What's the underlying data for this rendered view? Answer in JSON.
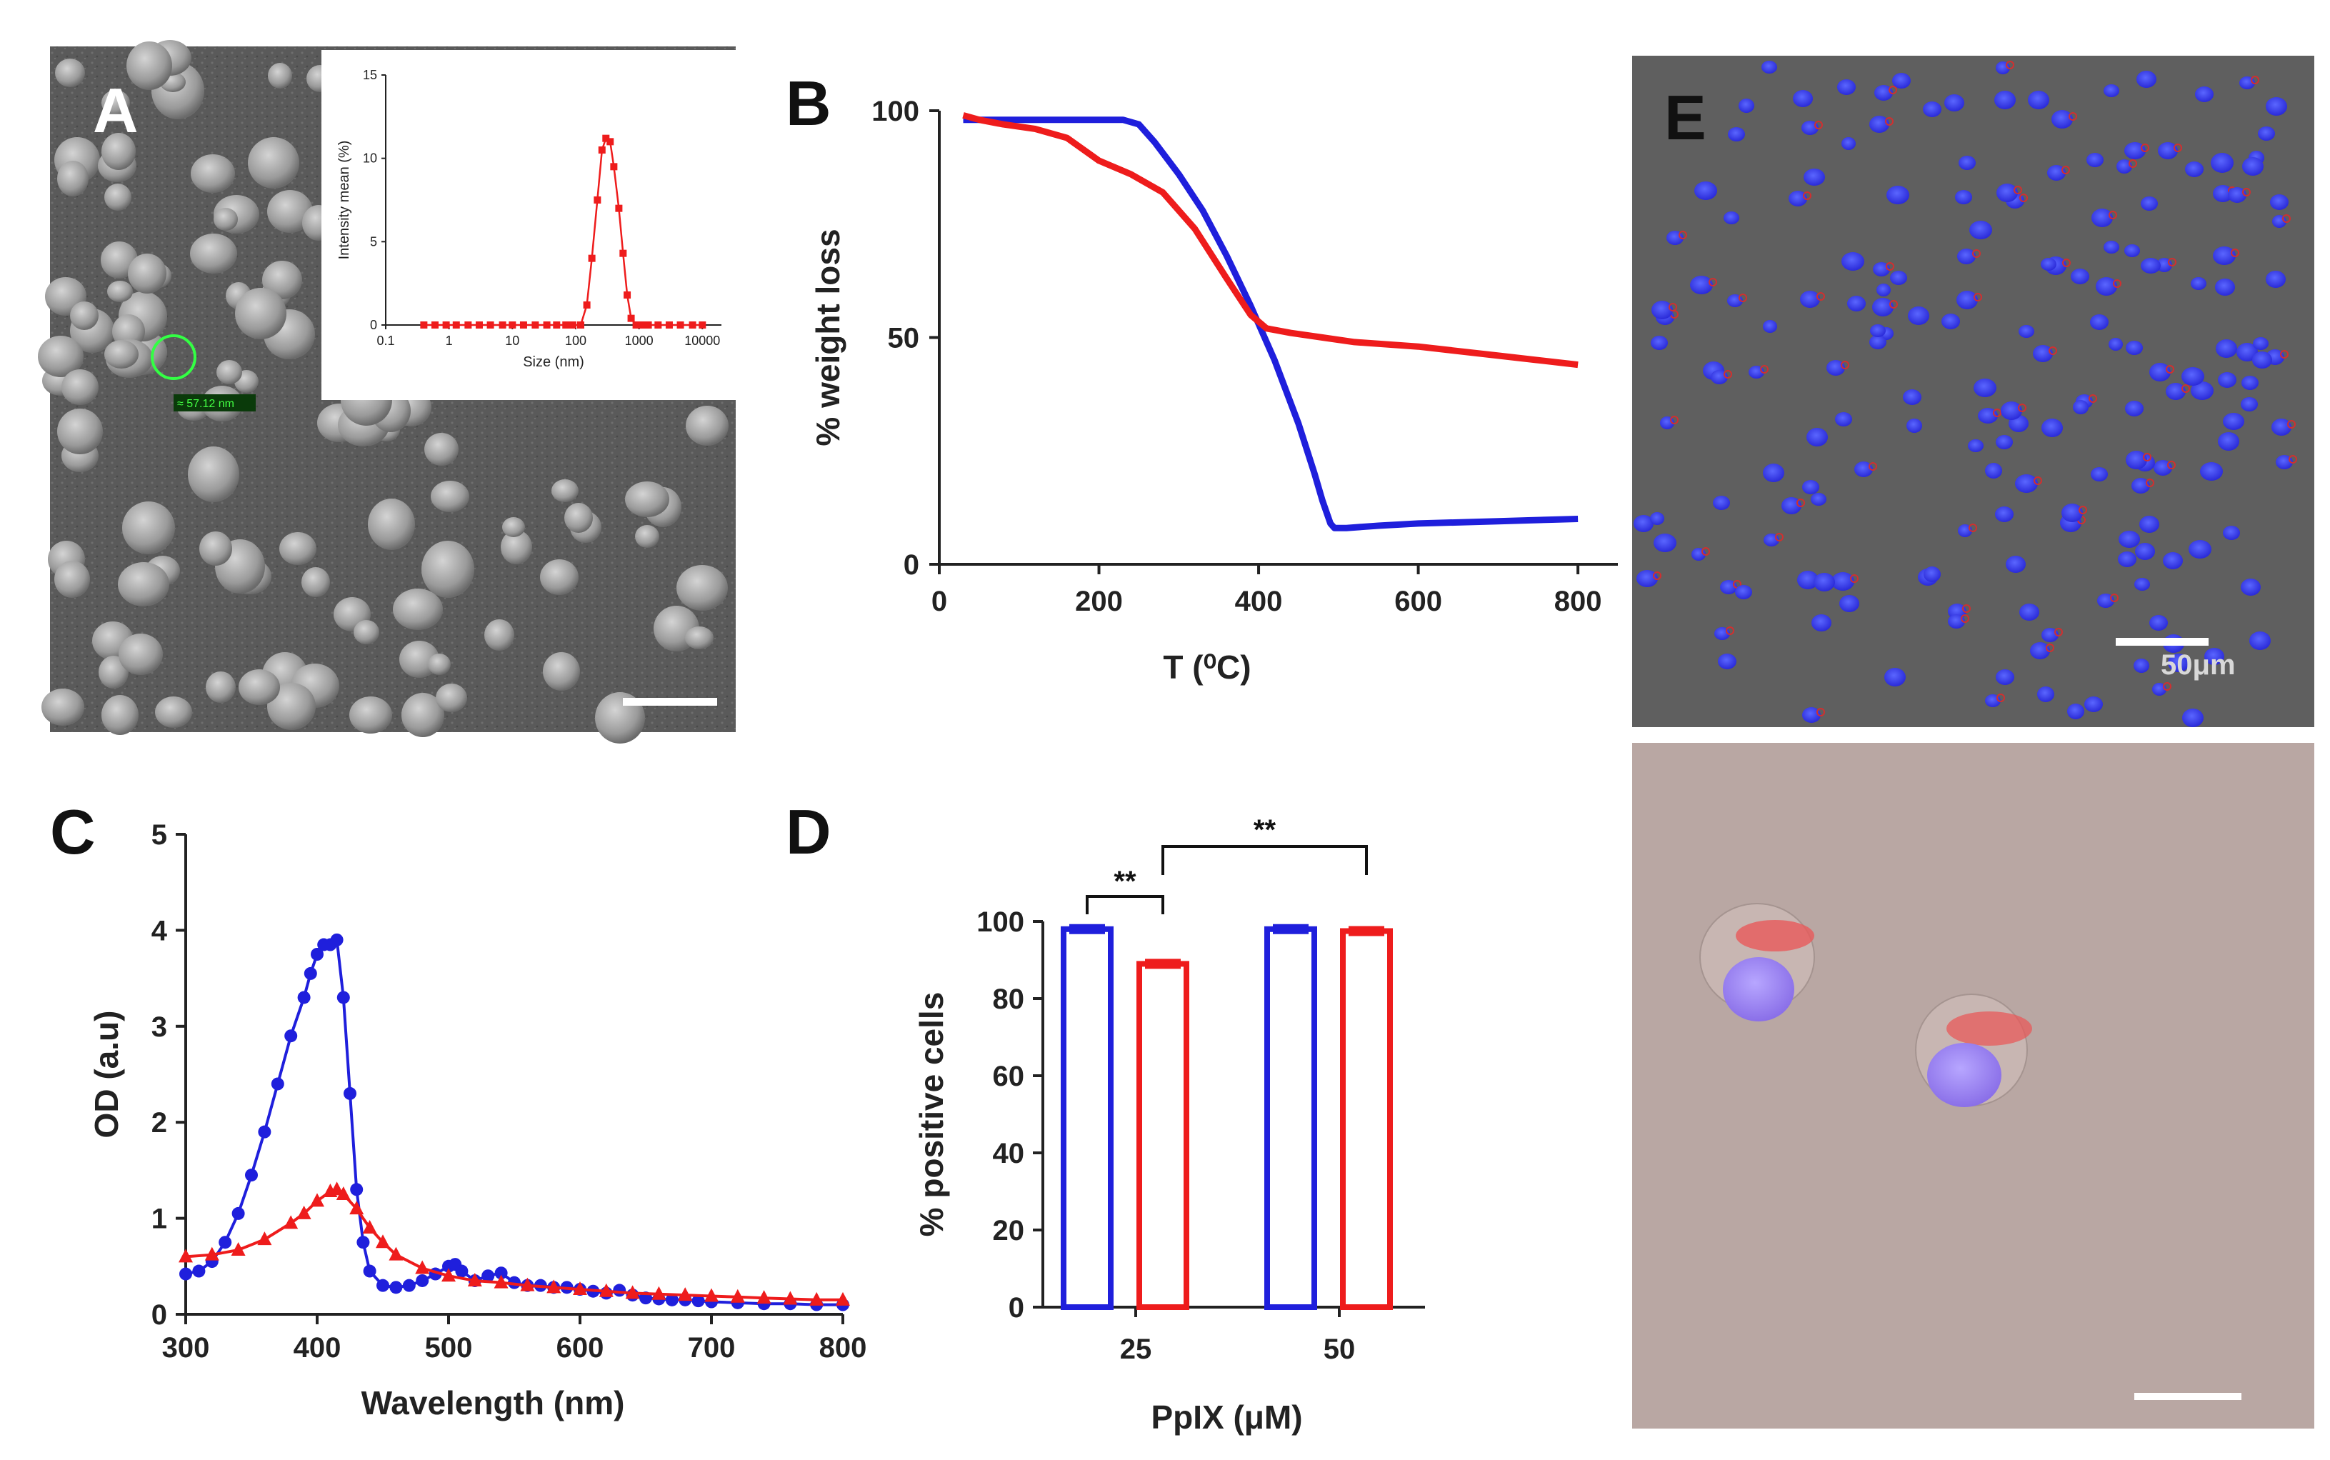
{
  "colors": {
    "blue": "#1f1fdc",
    "red": "#ee1c1c"
  },
  "panels": {
    "A": {
      "letter": "A",
      "measure_label": "≈ 57.12 nm"
    },
    "B": {
      "letter": "B"
    },
    "C": {
      "letter": "C"
    },
    "D": {
      "letter": "D"
    },
    "E": {
      "letter": "E",
      "scale_label": "50μm"
    }
  },
  "chart_data": [
    {
      "id": "A-inset",
      "type": "line",
      "xscale": "log",
      "xlabel": "Size (nm)",
      "ylabel": "Intensity mean (%)",
      "xlim": [
        0.1,
        20000
      ],
      "ylim": [
        0,
        15
      ],
      "xticks": [
        "0.1",
        "1",
        "10",
        "100",
        "1000",
        "10000"
      ],
      "yticks": [
        "0",
        "5",
        "10",
        "15"
      ],
      "series": [
        {
          "color": "#ee1c1c",
          "x": [
            0.4,
            0.6,
            0.9,
            1.3,
            2,
            3,
            4.5,
            7,
            10,
            15,
            23,
            35,
            50,
            70,
            90,
            120,
            150,
            180,
            220,
            260,
            300,
            350,
            400,
            480,
            560,
            650,
            750,
            900,
            1100,
            1400,
            2000,
            3000,
            4500,
            7000,
            10000
          ],
          "y": [
            0,
            0,
            0,
            0,
            0,
            0,
            0,
            0,
            0,
            0,
            0,
            0,
            0,
            0,
            0,
            0,
            1.2,
            4,
            7.5,
            10.5,
            11.2,
            11,
            9.5,
            7,
            4.3,
            1.8,
            0.4,
            0,
            0,
            0,
            0,
            0,
            0,
            0,
            0
          ]
        }
      ]
    },
    {
      "id": "B",
      "type": "line",
      "xlabel": "T (⁰C)",
      "ylabel": "% weight loss",
      "xlim": [
        0,
        850
      ],
      "ylim": [
        0,
        100
      ],
      "xticks": [
        "0",
        "200",
        "400",
        "600",
        "800"
      ],
      "yticks": [
        "0",
        "50",
        "100"
      ],
      "series": [
        {
          "color": "#1f1fdc",
          "x": [
            30,
            60,
            100,
            150,
            200,
            230,
            250,
            270,
            300,
            330,
            360,
            390,
            420,
            450,
            470,
            480,
            490,
            495,
            500,
            510,
            550,
            600,
            700,
            800
          ],
          "y": [
            98,
            98,
            98,
            98,
            98,
            98,
            97,
            93,
            86,
            78,
            68,
            57,
            45,
            31,
            20,
            14,
            9,
            8,
            8,
            8,
            8.5,
            9,
            9.5,
            10
          ]
        },
        {
          "color": "#ee1c1c",
          "x": [
            30,
            50,
            80,
            120,
            160,
            200,
            240,
            280,
            320,
            360,
            390,
            410,
            440,
            480,
            520,
            600,
            700,
            800
          ],
          "y": [
            99,
            98,
            97,
            96,
            94,
            89,
            86,
            82,
            74,
            63,
            55,
            52,
            51,
            50,
            49,
            48,
            46,
            44
          ]
        }
      ]
    },
    {
      "id": "C",
      "type": "line",
      "xlabel": "Wavelength (nm)",
      "ylabel": "OD (a.u)",
      "xlim": [
        300,
        800
      ],
      "ylim": [
        0,
        5
      ],
      "xticks": [
        "300",
        "400",
        "500",
        "600",
        "700",
        "800"
      ],
      "yticks": [
        "0",
        "1",
        "2",
        "3",
        "4",
        "5"
      ],
      "series": [
        {
          "color": "#1f1fdc",
          "marker": "circle",
          "x": [
            300,
            310,
            320,
            330,
            340,
            350,
            360,
            370,
            380,
            390,
            395,
            400,
            405,
            410,
            415,
            420,
            425,
            430,
            435,
            440,
            450,
            460,
            470,
            480,
            490,
            500,
            505,
            510,
            520,
            530,
            540,
            550,
            560,
            570,
            580,
            590,
            600,
            610,
            620,
            630,
            640,
            650,
            660,
            670,
            680,
            690,
            700,
            720,
            740,
            760,
            780,
            800
          ],
          "y": [
            0.42,
            0.45,
            0.55,
            0.75,
            1.05,
            1.45,
            1.9,
            2.4,
            2.9,
            3.3,
            3.55,
            3.75,
            3.85,
            3.85,
            3.9,
            3.3,
            2.3,
            1.3,
            0.75,
            0.45,
            0.3,
            0.28,
            0.3,
            0.35,
            0.42,
            0.5,
            0.52,
            0.45,
            0.35,
            0.4,
            0.43,
            0.33,
            0.3,
            0.3,
            0.28,
            0.28,
            0.26,
            0.24,
            0.22,
            0.25,
            0.2,
            0.17,
            0.16,
            0.15,
            0.15,
            0.14,
            0.13,
            0.12,
            0.11,
            0.11,
            0.1,
            0.1
          ]
        },
        {
          "color": "#ee1c1c",
          "marker": "triangle",
          "x": [
            300,
            320,
            340,
            360,
            380,
            390,
            400,
            410,
            415,
            420,
            430,
            440,
            450,
            460,
            480,
            500,
            520,
            540,
            560,
            580,
            600,
            620,
            640,
            660,
            680,
            700,
            720,
            740,
            760,
            780,
            800
          ],
          "y": [
            0.6,
            0.62,
            0.67,
            0.78,
            0.95,
            1.05,
            1.18,
            1.28,
            1.3,
            1.25,
            1.1,
            0.9,
            0.75,
            0.62,
            0.48,
            0.4,
            0.35,
            0.33,
            0.3,
            0.28,
            0.26,
            0.24,
            0.22,
            0.21,
            0.2,
            0.19,
            0.18,
            0.17,
            0.16,
            0.15,
            0.15
          ]
        }
      ]
    },
    {
      "id": "D",
      "type": "bar",
      "xlabel": "PpIX (μM)",
      "ylabel": "% positive cells",
      "ylim": [
        0,
        100
      ],
      "categories": [
        "25",
        "50"
      ],
      "yticks": [
        "0",
        "20",
        "40",
        "60",
        "80",
        "100"
      ],
      "series": [
        {
          "color": "#1f1fdc",
          "values": [
            98,
            98
          ]
        },
        {
          "color": "#ee1c1c",
          "values": [
            89,
            97.5
          ]
        }
      ],
      "annotations": [
        "**",
        "**"
      ]
    }
  ]
}
